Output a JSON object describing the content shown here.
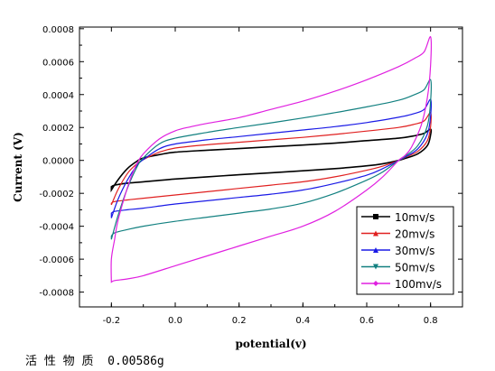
{
  "chart_data": {
    "type": "line",
    "title": "",
    "xlabel": "potential(v)",
    "ylabel": "Current (V)",
    "xlim": [
      -0.3,
      0.9
    ],
    "ylim": [
      -0.00089,
      0.00081
    ],
    "xticks": [
      -0.2,
      0.0,
      0.2,
      0.4,
      0.6,
      0.8
    ],
    "xtick_labels": [
      "-0.2",
      "0.0",
      "0.2",
      "0.4",
      "0.6",
      "0.8"
    ],
    "yticks": [
      -0.0008,
      -0.0006,
      -0.0004,
      -0.0002,
      0.0,
      0.0002,
      0.0004,
      0.0006,
      0.0008
    ],
    "ytick_labels": [
      "-0.0008",
      "-0.0006",
      "-0.0004",
      "-0.0002",
      "0.0000",
      "0.0002",
      "0.0004",
      "0.0006",
      "0.0008"
    ],
    "grid": false,
    "legend_position": "bottom-right",
    "series": [
      {
        "name": "10mv/s",
        "color": "#000000",
        "marker": "square",
        "x": [
          -0.2,
          -0.18,
          -0.15,
          -0.12,
          -0.1,
          -0.05,
          0.0,
          0.1,
          0.2,
          0.3,
          0.4,
          0.5,
          0.6,
          0.7,
          0.75,
          0.78,
          0.8,
          0.8,
          0.79,
          0.76,
          0.72,
          0.7,
          0.65,
          0.6,
          0.5,
          0.4,
          0.3,
          0.2,
          0.1,
          0.0,
          -0.1,
          -0.15,
          -0.19,
          -0.2
        ],
        "y": [
          -0.00018,
          -0.00012,
          -5e-05,
          -5e-06,
          1.5e-05,
          3.5e-05,
          5e-05,
          6.2e-05,
          7.2e-05,
          8.3e-05,
          9.3e-05,
          0.000105,
          0.00012,
          0.000135,
          0.00015,
          0.000165,
          0.00019,
          0.000155,
          9e-05,
          4e-05,
          1.2e-05,
          0.0,
          -2e-05,
          -3.3e-05,
          -5e-05,
          -6.3e-05,
          -7.5e-05,
          -8.7e-05,
          -0.0001,
          -0.000113,
          -0.00013,
          -0.000138,
          -0.00015,
          -0.00016
        ]
      },
      {
        "name": "20mv/s",
        "color": "#e02020",
        "marker": "triangle-up",
        "x": [
          -0.2,
          -0.18,
          -0.15,
          -0.12,
          -0.1,
          -0.05,
          0.0,
          0.1,
          0.2,
          0.3,
          0.4,
          0.5,
          0.6,
          0.7,
          0.75,
          0.78,
          0.8,
          0.8,
          0.79,
          0.76,
          0.72,
          0.7,
          0.65,
          0.6,
          0.5,
          0.4,
          0.3,
          0.2,
          0.1,
          0.0,
          -0.1,
          -0.15,
          -0.19,
          -0.2
        ],
        "y": [
          -0.00027,
          -0.00018,
          -8e-05,
          -2e-05,
          5e-06,
          5e-05,
          7.5e-05,
          9.5e-05,
          0.00011,
          0.000125,
          0.00014,
          0.000158,
          0.000178,
          0.0002,
          0.00022,
          0.00024,
          0.00029,
          0.000205,
          0.00012,
          5.5e-05,
          1.8e-05,
          0.0,
          -3.5e-05,
          -6e-05,
          -0.0001,
          -0.00013,
          -0.00015,
          -0.00017,
          -0.00019,
          -0.00021,
          -0.00023,
          -0.00024,
          -0.00025,
          -0.00026
        ]
      },
      {
        "name": "30mv/s",
        "color": "#1a1ae6",
        "marker": "triangle-up",
        "x": [
          -0.2,
          -0.18,
          -0.15,
          -0.12,
          -0.1,
          -0.05,
          0.0,
          0.1,
          0.2,
          0.3,
          0.4,
          0.5,
          0.6,
          0.7,
          0.75,
          0.78,
          0.8,
          0.8,
          0.79,
          0.76,
          0.72,
          0.7,
          0.65,
          0.6,
          0.5,
          0.4,
          0.3,
          0.2,
          0.1,
          0.0,
          -0.1,
          -0.15,
          -0.19,
          -0.2
        ],
        "y": [
          -0.00035,
          -0.00024,
          -0.00012,
          -3e-05,
          5e-06,
          7e-05,
          0.0001,
          0.000125,
          0.000145,
          0.000165,
          0.000185,
          0.000205,
          0.00023,
          0.000262,
          0.000285,
          0.00031,
          0.00037,
          0.00027,
          0.00016,
          7e-05,
          2e-05,
          0.0,
          -5e-05,
          -9e-05,
          -0.00014,
          -0.00018,
          -0.000205,
          -0.000225,
          -0.000245,
          -0.000265,
          -0.00029,
          -0.0003,
          -0.00031,
          -0.00032
        ]
      },
      {
        "name": "50mv/s",
        "color": "#128080",
        "marker": "triangle-down",
        "x": [
          -0.2,
          -0.18,
          -0.15,
          -0.12,
          -0.1,
          -0.05,
          0.0,
          0.1,
          0.2,
          0.3,
          0.4,
          0.5,
          0.6,
          0.7,
          0.75,
          0.78,
          0.8,
          0.8,
          0.79,
          0.76,
          0.72,
          0.7,
          0.65,
          0.6,
          0.5,
          0.4,
          0.3,
          0.2,
          0.1,
          0.0,
          -0.1,
          -0.15,
          -0.19,
          -0.2
        ],
        "y": [
          -0.00048,
          -0.00034,
          -0.00017,
          -4e-05,
          1.5e-05,
          0.0001,
          0.000135,
          0.00017,
          0.0002,
          0.000228,
          0.000258,
          0.00029,
          0.000325,
          0.000365,
          0.0004,
          0.00043,
          0.00049,
          0.00036,
          0.00021,
          9e-05,
          2.5e-05,
          0.0,
          -7e-05,
          -0.00012,
          -0.0002,
          -0.00026,
          -0.000295,
          -0.00032,
          -0.000345,
          -0.00037,
          -0.0004,
          -0.00042,
          -0.00044,
          -0.00046
        ]
      },
      {
        "name": "100mv/s",
        "color": "#e020e0",
        "marker": "diamond",
        "x": [
          -0.2,
          -0.2,
          -0.19,
          -0.18,
          -0.16,
          -0.14,
          -0.12,
          -0.1,
          -0.05,
          0.0,
          0.05,
          0.1,
          0.2,
          0.3,
          0.4,
          0.5,
          0.6,
          0.7,
          0.75,
          0.78,
          0.8,
          0.8,
          0.79,
          0.77,
          0.74,
          0.72,
          0.7,
          0.65,
          0.6,
          0.5,
          0.4,
          0.3,
          0.2,
          0.1,
          0.0,
          -0.1,
          -0.15,
          -0.19,
          -0.2
        ],
        "y": [
          -0.00074,
          -0.0006,
          -0.00048,
          -0.00037,
          -0.00023,
          -0.00011,
          -2e-05,
          4e-05,
          0.00013,
          0.00018,
          0.000205,
          0.000225,
          0.00026,
          0.00031,
          0.00036,
          0.00042,
          0.00049,
          0.00057,
          0.00062,
          0.00066,
          0.00075,
          0.00058,
          0.00038,
          0.00021,
          8e-05,
          3e-05,
          0.0,
          -0.0001,
          -0.00018,
          -0.00031,
          -0.0004,
          -0.00046,
          -0.00052,
          -0.00058,
          -0.00064,
          -0.0007,
          -0.00072,
          -0.00073,
          -0.00074
        ]
      }
    ]
  },
  "note": {
    "text": "活 性 物 质  0.00586g"
  }
}
